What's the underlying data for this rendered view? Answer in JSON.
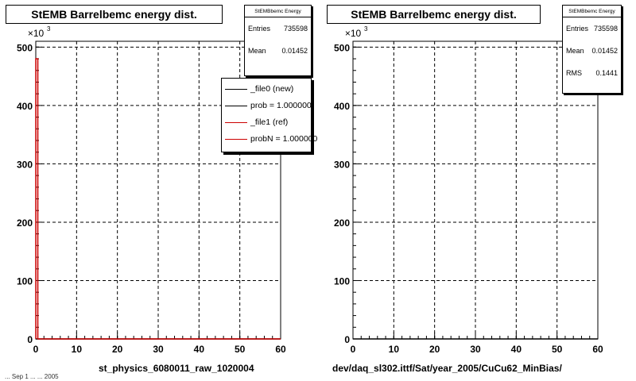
{
  "chart_data": [
    {
      "type": "histogram",
      "title": "StEMB Barrelbemc energy dist.",
      "xlabel": "st_physics_6080011_raw_1020004",
      "ylabel": "",
      "y_multiplier": "×10",
      "y_multiplier_exponent": "3",
      "xlim": [
        0,
        60
      ],
      "ylim": [
        0,
        510
      ],
      "x_ticks": [
        0,
        10,
        20,
        30,
        40,
        50,
        60
      ],
      "y_ticks": [
        0,
        100,
        200,
        300,
        400,
        500
      ],
      "grid": true,
      "series": [
        {
          "name": "_file0 (new)",
          "color": "#000000",
          "x": [
            0,
            0.5,
            1,
            60
          ],
          "y": [
            0,
            0,
            0,
            0
          ]
        },
        {
          "name": "_file1 (ref)",
          "color": "#cc0000",
          "x": [
            0,
            0.5,
            1,
            60
          ],
          "y": [
            480,
            0,
            0,
            0
          ]
        }
      ],
      "stats": {
        "name": "StEMBbemc Energy",
        "entries_label": "Entries",
        "entries": "735598",
        "mean_label": "Mean",
        "mean": "0.01452"
      },
      "legend": {
        "placement": "top-right",
        "entries": [
          {
            "label": "_file0 (new)",
            "color": "#000000"
          },
          {
            "label": "prob = 1.000000",
            "color": "#000000"
          },
          {
            "label": "_file1 (ref)",
            "color": "#cc0000"
          },
          {
            "label": "probN = 1.000000",
            "color": "#cc0000"
          }
        ]
      }
    },
    {
      "type": "histogram",
      "title": "StEMB Barrelbemc energy dist.",
      "xlabel": "dev/daq_sl302.ittf/Sat/year_2005/CuCu62_MinBias/",
      "ylabel": "",
      "y_multiplier": "×10",
      "y_multiplier_exponent": "3",
      "xlim": [
        0,
        60
      ],
      "ylim": [
        0,
        510
      ],
      "x_ticks": [
        0,
        10,
        20,
        30,
        40,
        50,
        60
      ],
      "y_ticks": [
        0,
        100,
        200,
        300,
        400,
        500
      ],
      "grid": true,
      "series": [
        {
          "color": "#000000",
          "x": [
            0,
            0.5,
            1,
            60
          ],
          "y": [
            0,
            0,
            0,
            0
          ]
        }
      ],
      "stats": {
        "name": "StEMBbemc Energy",
        "entries_label": "Entries",
        "entries": "735598",
        "mean_label": "Mean",
        "mean": "0.01452",
        "rms_label": "RMS",
        "rms": "0.1441"
      }
    }
  ],
  "footer_fragment": "... Sep 1 ... ... 2005"
}
